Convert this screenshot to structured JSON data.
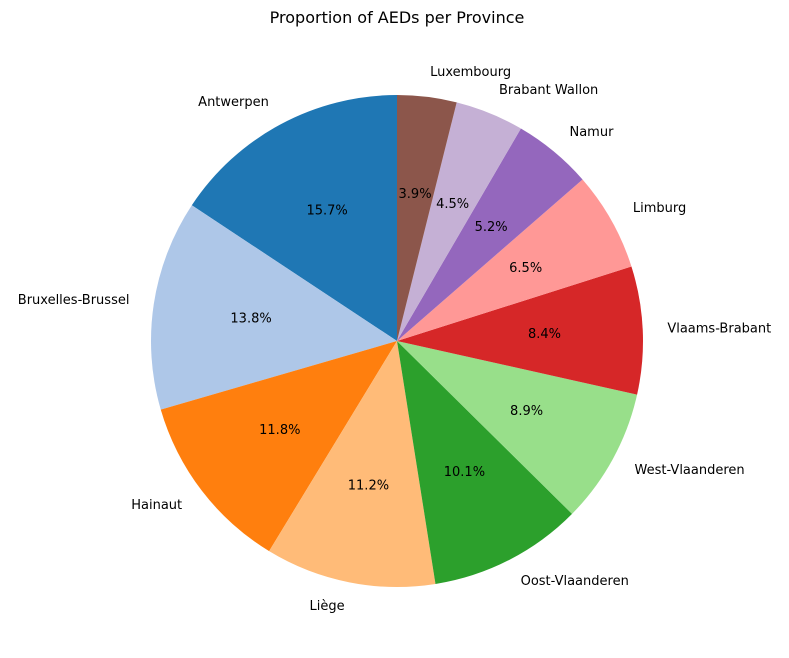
{
  "chart_data": {
    "type": "pie",
    "title": "Proportion of AEDs per Province",
    "start_angle_deg": 90,
    "direction": "counterclockwise",
    "slices": [
      {
        "label": "Antwerpen",
        "pct_label": "15.7%",
        "value": 15.7,
        "color": "#1f77b4"
      },
      {
        "label": "Bruxelles-Brussel",
        "pct_label": "13.8%",
        "value": 13.8,
        "color": "#aec7e8"
      },
      {
        "label": "Hainaut",
        "pct_label": "11.8%",
        "value": 11.8,
        "color": "#ff7f0e"
      },
      {
        "label": "Liège",
        "pct_label": "11.2%",
        "value": 11.2,
        "color": "#ffbb78"
      },
      {
        "label": "Oost-Vlaanderen",
        "pct_label": "10.1%",
        "value": 10.1,
        "color": "#2ca02c"
      },
      {
        "label": "West-Vlaanderen",
        "pct_label": "8.9%",
        "value": 8.9,
        "color": "#98df8a"
      },
      {
        "label": "Vlaams-Brabant",
        "pct_label": "8.4%",
        "value": 8.4,
        "color": "#d62728"
      },
      {
        "label": "Limburg",
        "pct_label": "6.5%",
        "value": 6.5,
        "color": "#ff9896"
      },
      {
        "label": "Namur",
        "pct_label": "5.2%",
        "value": 5.2,
        "color": "#9467bd"
      },
      {
        "label": "Brabant Wallon",
        "pct_label": "4.5%",
        "value": 4.5,
        "color": "#c5b0d5"
      },
      {
        "label": "Luxembourg",
        "pct_label": "3.9%",
        "value": 3.9,
        "color": "#8c564b"
      }
    ]
  }
}
